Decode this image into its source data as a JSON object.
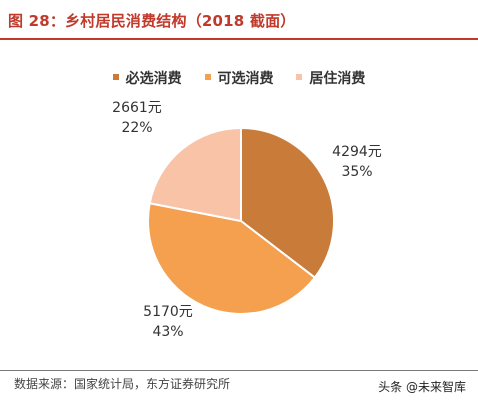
{
  "title": "图 28：乡村居民消费结构（2018 截面）",
  "legend": [
    {
      "label": "必选消费",
      "color": "#c97b3a"
    },
    {
      "label": "可选消费",
      "color": "#f4a04e"
    },
    {
      "label": "居住消费",
      "color": "#f8c3a6"
    }
  ],
  "chart_data": {
    "type": "pie",
    "title": "",
    "start_angle_deg": 0,
    "direction": "clockwise",
    "slices": [
      {
        "name": "必选消费",
        "value": 4294,
        "value_label": "4294元",
        "percent_label": "35%",
        "color": "#c97b3a"
      },
      {
        "name": "可选消费",
        "value": 5170,
        "value_label": "5170元",
        "percent_label": "43%",
        "color": "#f4a04e"
      },
      {
        "name": "居住消费",
        "value": 2661,
        "value_label": "2661元",
        "percent_label": "22%",
        "color": "#f8c3a6"
      }
    ],
    "legend_position": "top"
  },
  "footer": {
    "source": "数据来源：国家统计局，东方证券研究所",
    "watermark": "头条 @未来智库"
  }
}
